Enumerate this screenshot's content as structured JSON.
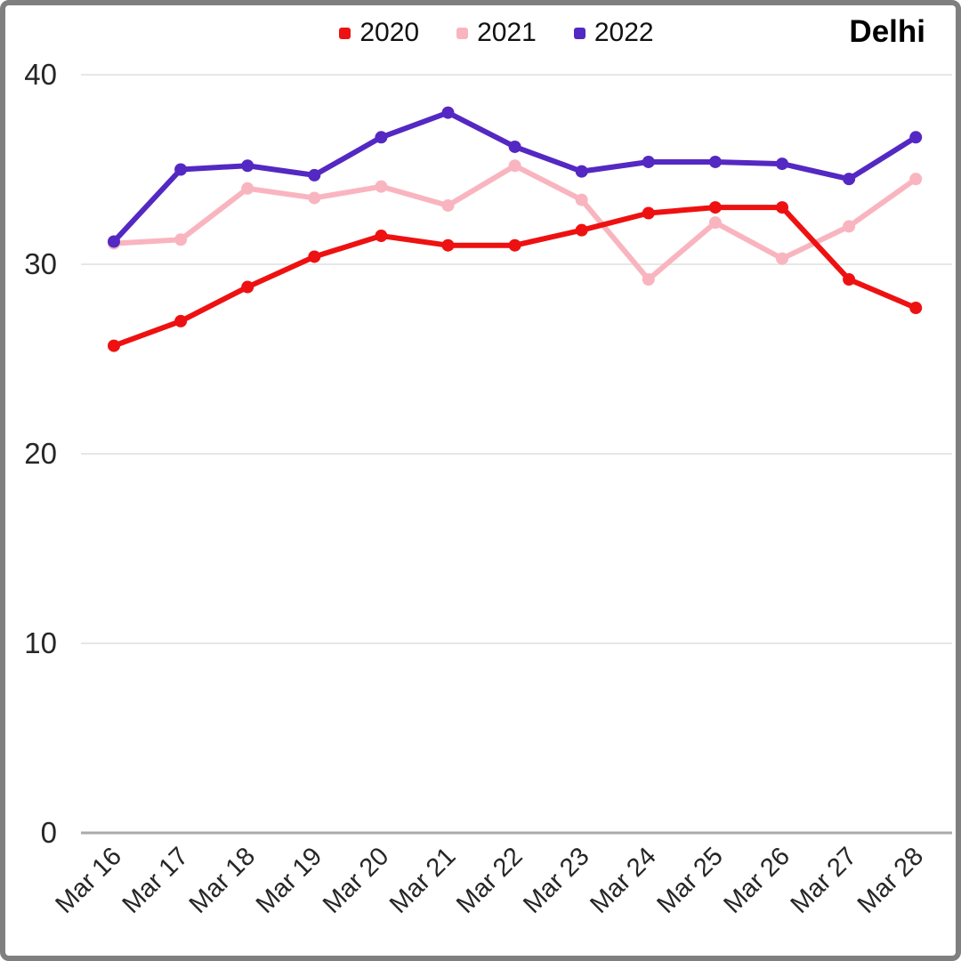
{
  "title": "Delhi",
  "legend": {
    "items": [
      "2020",
      "2021",
      "2022"
    ]
  },
  "chart_data": {
    "type": "line",
    "title": "Delhi",
    "categories": [
      "Mar 16",
      "Mar 17",
      "Mar 18",
      "Mar 19",
      "Mar 20",
      "Mar 21",
      "Mar 22",
      "Mar 23",
      "Mar 24",
      "Mar 25",
      "Mar 26",
      "Mar 27",
      "Mar 28"
    ],
    "series": [
      {
        "name": "2020",
        "color": "#ee1111",
        "values": [
          25.7,
          27.0,
          28.8,
          30.4,
          31.5,
          31.0,
          31.0,
          31.8,
          32.7,
          33.0,
          33.0,
          29.2,
          27.7
        ]
      },
      {
        "name": "2021",
        "color": "#f9b5bf",
        "values": [
          31.1,
          31.3,
          34.0,
          33.5,
          34.1,
          33.1,
          35.2,
          33.4,
          29.2,
          32.2,
          30.3,
          32.0,
          34.5
        ]
      },
      {
        "name": "2022",
        "color": "#5428c2",
        "values": [
          31.2,
          35.0,
          35.2,
          34.7,
          36.7,
          38.0,
          36.2,
          34.9,
          35.4,
          35.4,
          35.3,
          34.5,
          36.7
        ]
      }
    ],
    "draw_order": [
      1,
      0,
      2
    ],
    "xlabel": "",
    "ylabel": "",
    "ylim": [
      0,
      40
    ],
    "yticks": [
      0,
      10,
      20,
      30,
      40
    ],
    "grid": true,
    "legend_position": "top",
    "colors": {
      "grid_line": "#e7e7e7",
      "zero_line": "#aaaaaa",
      "label_text": "#262626",
      "frame_border": "#7f7f7f",
      "background": "#ffffff"
    }
  }
}
